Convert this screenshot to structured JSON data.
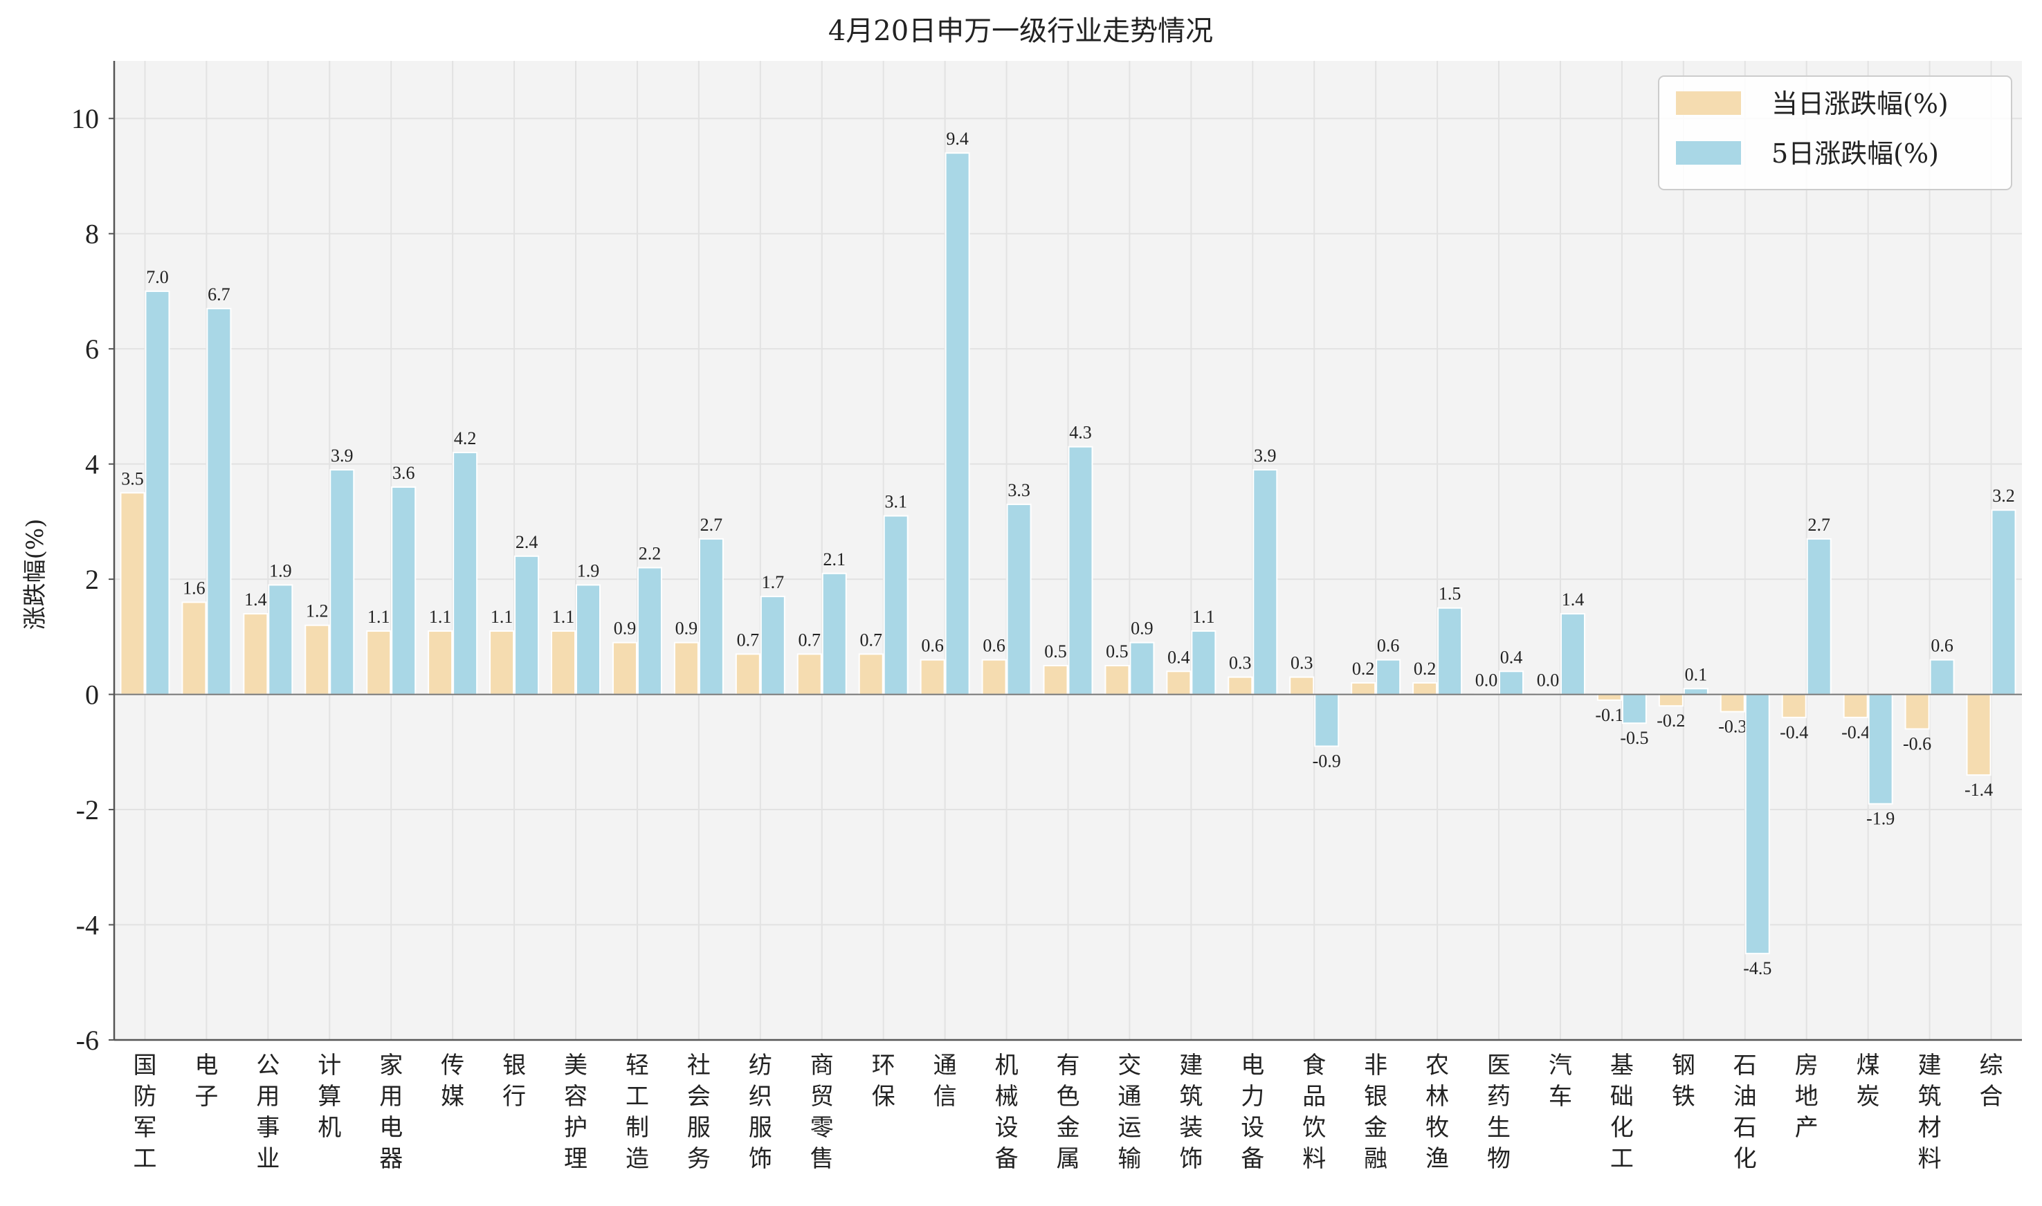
{
  "chart_data": {
    "type": "bar",
    "title": "4月20日申万一级行业走势情况",
    "xlabel": "",
    "ylabel": "涨跌幅(%)",
    "ylim": [
      -6,
      11
    ],
    "yticks": [
      -6,
      -4,
      -2,
      0,
      2,
      4,
      6,
      8,
      10
    ],
    "grid": true,
    "legend_position": "top-right",
    "categories": [
      "国防军工",
      "电子",
      "公用事业",
      "计算机",
      "家用电器",
      "传媒",
      "银行",
      "美容护理",
      "轻工制造",
      "社会服务",
      "纺织服饰",
      "商贸零售",
      "环保",
      "通信",
      "机械设备",
      "有色金属",
      "交通运输",
      "建筑装饰",
      "电力设备",
      "食品饮料",
      "非银金融",
      "农林牧渔",
      "医药生物",
      "汽车",
      "基础化工",
      "钢铁",
      "石油石化",
      "房地产",
      "煤炭",
      "建筑材料",
      "综合"
    ],
    "series": [
      {
        "name": "当日涨跌幅(%)",
        "color": "#f5dcb0",
        "values": [
          3.5,
          1.6,
          1.4,
          1.2,
          1.1,
          1.1,
          1.1,
          1.1,
          0.9,
          0.9,
          0.7,
          0.7,
          0.7,
          0.6,
          0.6,
          0.5,
          0.5,
          0.4,
          0.3,
          0.3,
          0.2,
          0.2,
          0.0,
          0.0,
          -0.1,
          -0.2,
          -0.3,
          -0.4,
          -0.4,
          -0.6,
          -1.4
        ]
      },
      {
        "name": "5日涨跌幅(%)",
        "color": "#a9d7e6",
        "values": [
          7.0,
          6.7,
          1.9,
          3.9,
          3.6,
          4.2,
          2.4,
          1.9,
          2.2,
          2.7,
          1.7,
          2.1,
          3.1,
          9.4,
          3.3,
          4.3,
          0.9,
          1.1,
          3.9,
          -0.9,
          0.6,
          1.5,
          0.4,
          1.4,
          -0.5,
          0.1,
          -4.5,
          2.7,
          -1.9,
          0.6,
          3.2
        ]
      }
    ],
    "colors": {
      "background": "#f3f3f3",
      "grid": "#e2e2e2",
      "axis": "#555555",
      "zero_line": "#777777"
    }
  }
}
